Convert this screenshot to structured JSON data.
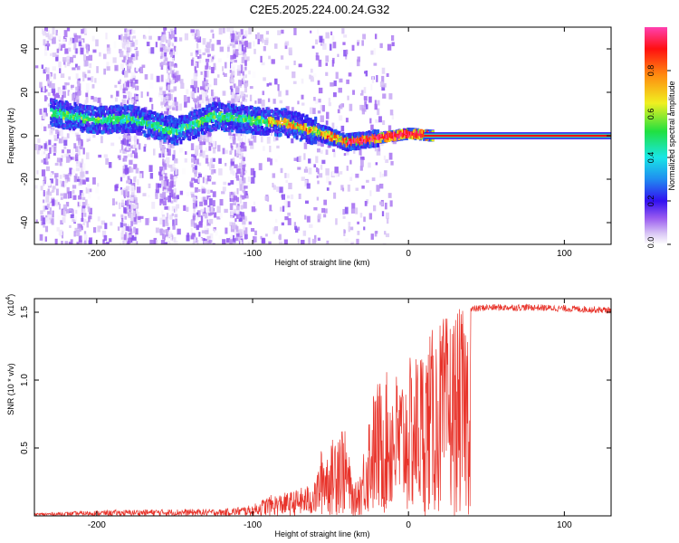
{
  "title": "C2E5.2025.224.00.24.G32",
  "colors": {
    "snr_line": "#e8332a",
    "colormap": [
      "#ffffff",
      "#d9c6f5",
      "#b98ef0",
      "#7a2ee8",
      "#2a10f0",
      "#1f8cf0",
      "#19e6e6",
      "#20e040",
      "#f0f020",
      "#ff8a10",
      "#ff1010",
      "#ff40b0"
    ]
  },
  "chart_data": [
    {
      "type": "heatmap",
      "xlabel": "Height of straight line (km)",
      "ylabel": "Frequency (Hz)",
      "xlim": [
        -240,
        130
      ],
      "ylim": [
        -50,
        50
      ],
      "xticks": [
        -200,
        -100,
        0,
        100
      ],
      "yticks": [
        -40,
        -20,
        0,
        20,
        40
      ],
      "ridge": {
        "description_points": [
          [
            -225,
            10
          ],
          [
            -200,
            7
          ],
          [
            -180,
            8
          ],
          [
            -150,
            2
          ],
          [
            -125,
            9
          ],
          [
            -100,
            7
          ],
          [
            -80,
            6
          ],
          [
            -60,
            2
          ],
          [
            -40,
            -3
          ],
          [
            -20,
            -1
          ],
          [
            0,
            1
          ],
          [
            15,
            0
          ],
          [
            130,
            0
          ]
        ]
      },
      "colorbar": {
        "label": "Normalized spectral amplitude",
        "range": [
          0,
          1
        ],
        "ticks": [
          "0.0",
          "0.2",
          "0.4",
          "0.6",
          "0.8"
        ]
      }
    },
    {
      "type": "line",
      "xlabel": "Height of straight line (km)",
      "ylabel": "SNR (10 * v/v)",
      "yscale_label": "(x10",
      "yscale_exp": "4",
      "yscale_tail": ")",
      "xlim": [
        -240,
        130
      ],
      "ylim": [
        0,
        1.6
      ],
      "xticks": [
        -200,
        -100,
        0,
        100
      ],
      "yticks": [
        "0.5",
        "1.0",
        "1.5"
      ],
      "series": [
        {
          "values_envelope": [
            [
              -240,
              0.02
            ],
            [
              -200,
              0.04
            ],
            [
              -160,
              0.05
            ],
            [
              -120,
              0.05
            ],
            [
              -100,
              0.08
            ],
            [
              -90,
              0.15
            ],
            [
              -75,
              0.18
            ],
            [
              -60,
              0.25
            ],
            [
              -55,
              0.55
            ],
            [
              -50,
              0.5
            ],
            [
              -45,
              0.8
            ],
            [
              -40,
              0.6
            ],
            [
              -35,
              0.2
            ],
            [
              -30,
              0.4
            ],
            [
              -25,
              0.85
            ],
            [
              -20,
              1.0
            ],
            [
              -15,
              1.05
            ],
            [
              -10,
              1.1
            ],
            [
              -5,
              1.05
            ],
            [
              0,
              1.15
            ],
            [
              10,
              1.3
            ],
            [
              20,
              1.45
            ],
            [
              30,
              1.52
            ],
            [
              50,
              1.55
            ],
            [
              80,
              1.55
            ],
            [
              130,
              1.53
            ]
          ]
        }
      ]
    }
  ]
}
